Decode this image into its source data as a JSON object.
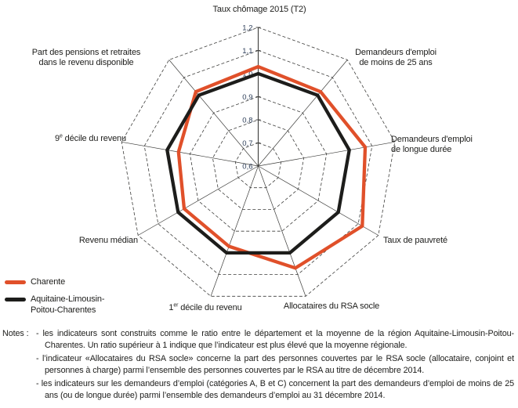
{
  "chart_data": {
    "type": "radar",
    "description": "Position de la Charente par rapport à la région (ratio département / moyenne régionale)",
    "scale": {
      "min": 0.6,
      "max": 1.2,
      "step": 0.1,
      "tick_labels": [
        "0,6",
        "0,7",
        "0,8",
        "0,9",
        "1,0",
        "1,1",
        "1,2"
      ],
      "grid": "dashed-polygon-rings"
    },
    "axes": [
      "Taux chômage 2015 (T2)",
      "Demandeurs d'emploi\nde moins de 25 ans",
      "Demandeurs d'emploi\nde longue durée",
      "Taux de pauvreté",
      "Allocataires du RSA socle",
      "1^{er} décile du revenu",
      "Revenu médian",
      "9^{e} décile du revenu",
      "Part des pensions et retraites\ndans le revenu disponible"
    ],
    "series": [
      {
        "name": "Charente",
        "color": "#e0502a",
        "values": [
          1.03,
          1.02,
          1.07,
          1.12,
          1.07,
          0.97,
          0.97,
          0.95,
          1.02
        ]
      },
      {
        "name": "Aquitaine-Limousin-Poitou-Charentes",
        "color": "#1d1d1b",
        "values": [
          1.0,
          1.0,
          1.0,
          1.0,
          1.0,
          1.0,
          1.0,
          1.0,
          1.0
        ]
      }
    ],
    "legend_position": "bottom-left",
    "colors": {
      "grid": "#3d3d3b",
      "tick_text": "#2e3f5a",
      "label_text": "#1d1d1b"
    }
  },
  "notes": {
    "label": "Notes :",
    "items": [
      "- les indicateurs sont construits comme le ratio entre le département et la moyenne de la région Aquitaine-Limousin-Poitou-Charentes. Un ratio supérieur à 1 indique que l’indicateur est plus élevé que la moyenne régionale.",
      "- l’indicateur «Allocataires du RSA socle» concerne la part des personnes couvertes par le RSA socle (allocataire, conjoint et personnes à charge) parmi l’ensemble des personnes couvertes par le RSA au titre de décembre 2014.",
      "- les indicateurs sur les demandeurs d’emploi (catégories A, B et C) concernent la part des demandeurs d’emploi de moins de 25 ans (ou de longue durée) parmi l’ensemble des demandeurs d’emploi au 31 décembre 2014."
    ]
  }
}
